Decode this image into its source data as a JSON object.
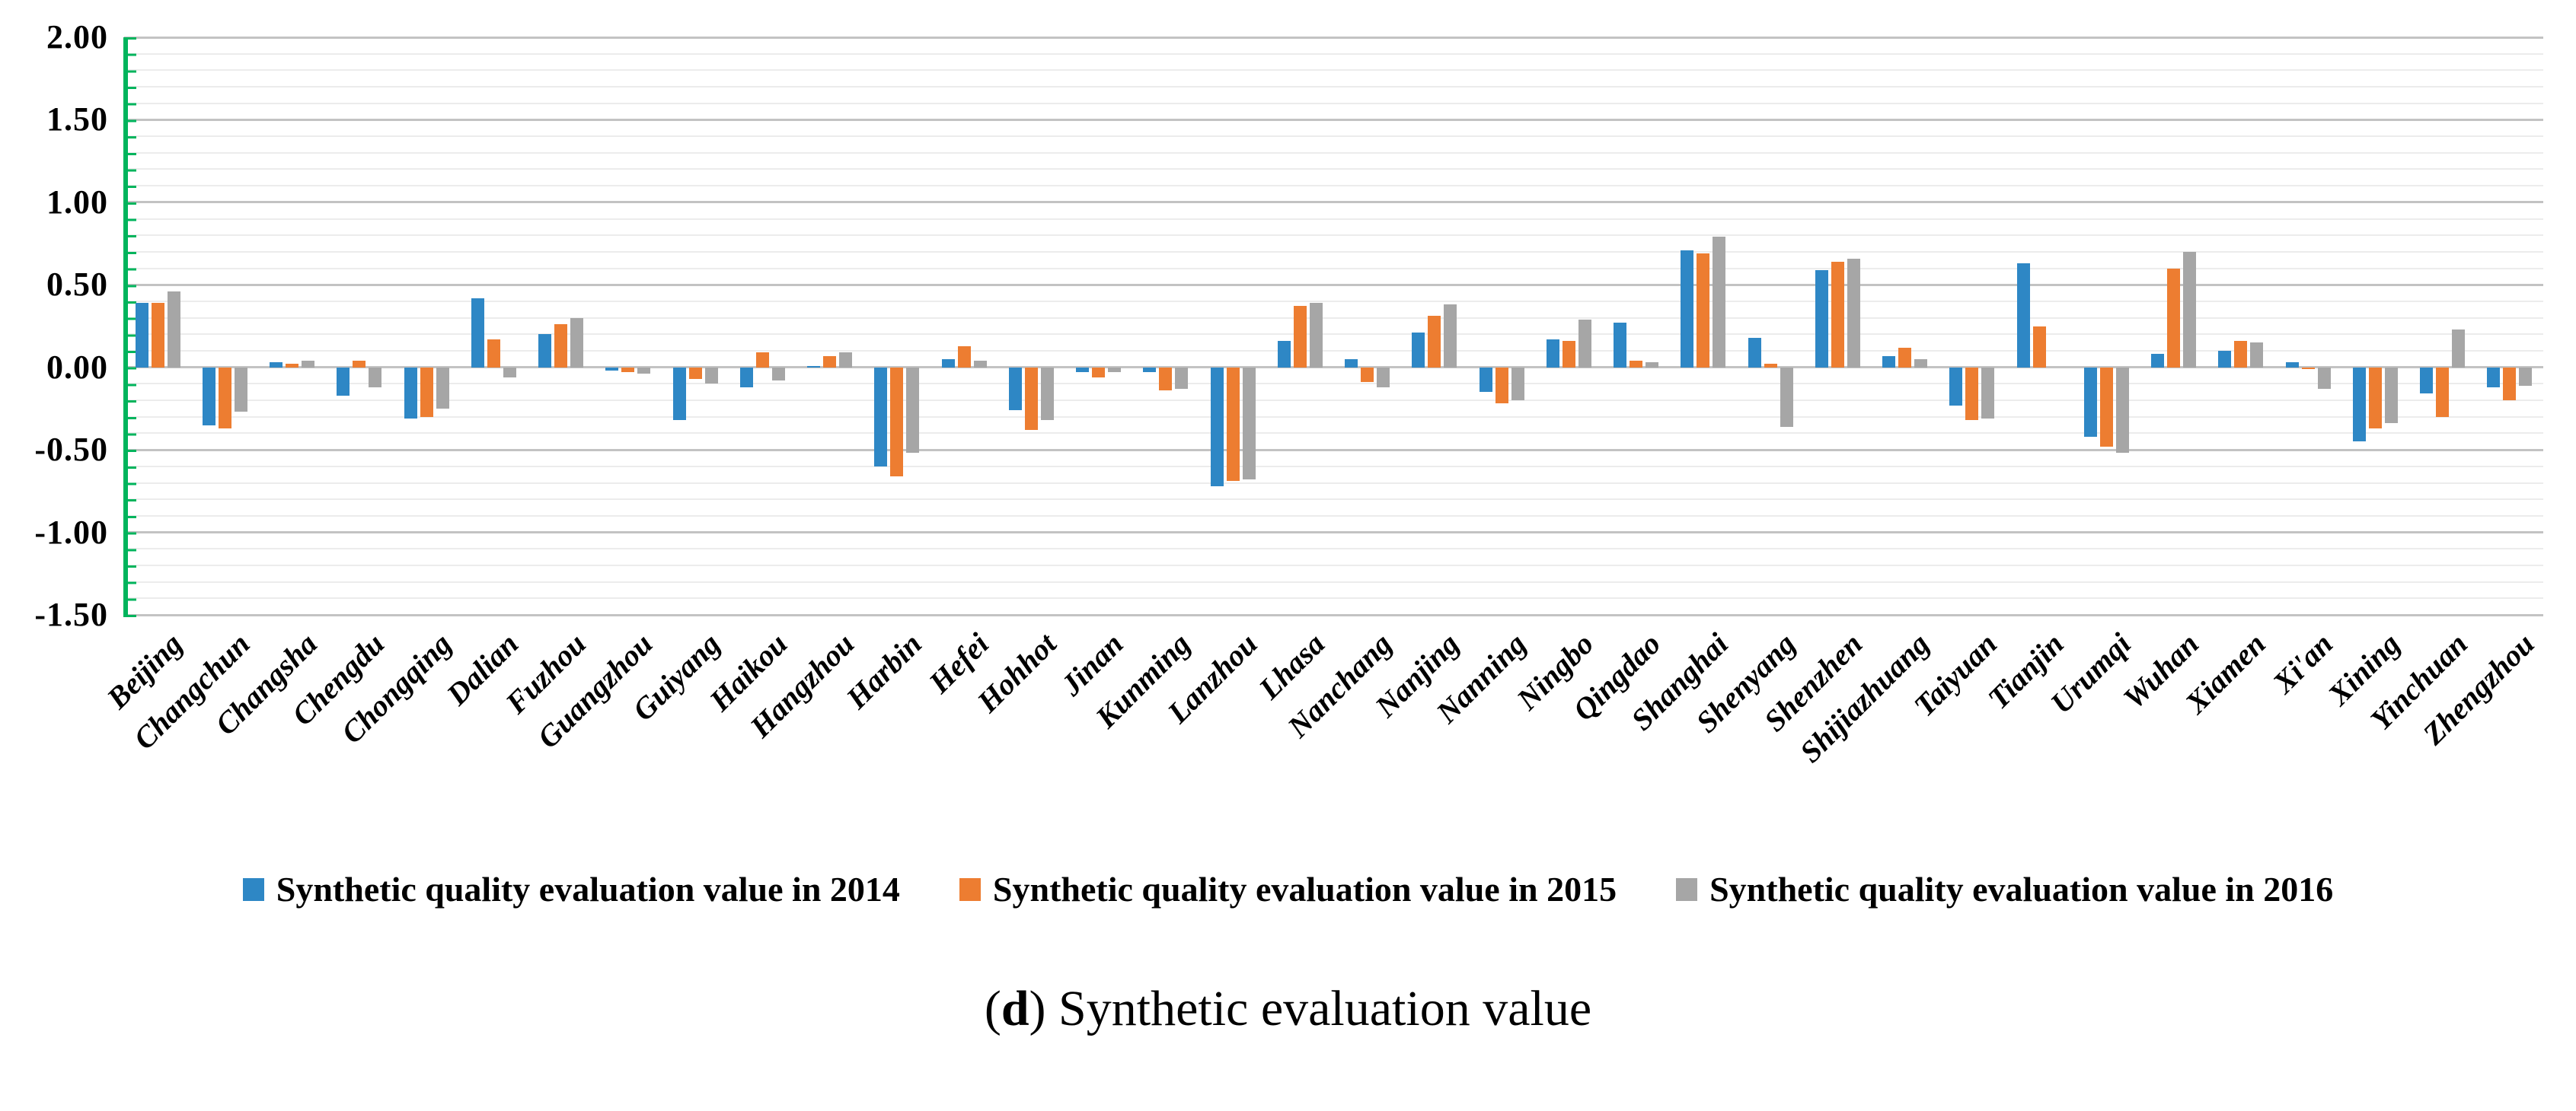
{
  "figure": {
    "caption": {
      "open": "(",
      "letter": "d",
      "rest": ") Synthetic evaluation value"
    }
  },
  "chart_data": {
    "type": "bar",
    "title": "",
    "xlabel": "",
    "ylabel": "",
    "grid": true,
    "legend_position": "bottom",
    "ylim": [
      -1.5,
      2.0
    ],
    "minor_grid_step": 0.1,
    "major_grid_step": 0.5,
    "axis_color": "#00B45C",
    "yticks": [
      {
        "value": 2.0,
        "label": "2.00"
      },
      {
        "value": 1.5,
        "label": "1.50"
      },
      {
        "value": 1.0,
        "label": "1.00"
      },
      {
        "value": 0.5,
        "label": "0.50"
      },
      {
        "value": 0.0,
        "label": "0.00"
      },
      {
        "value": -0.5,
        "label": "-0.50"
      },
      {
        "value": -1.0,
        "label": "-1.00"
      },
      {
        "value": -1.5,
        "label": "-1.50"
      }
    ],
    "categories": [
      "Beijing",
      "Changchun",
      "Changsha",
      "Chengdu",
      "Chongqing",
      "Dalian",
      "Fuzhou",
      "Guangzhou",
      "Guiyang",
      "Haikou",
      "Hangzhou",
      "Harbin",
      "Hefei",
      "Hohhot",
      "Jinan",
      "Kunming",
      "Lanzhou",
      "Lhasa",
      "Nanchang",
      "Nanjing",
      "Nanning",
      "Ningbo",
      "Qingdao",
      "Shanghai",
      "Shenyang",
      "Shenzhen",
      "Shijiazhuang",
      "Taiyuan",
      "Tianjin",
      "Urumqi",
      "Wuhan",
      "Xiamen",
      "Xi'an",
      "Xining",
      "Yinchuan",
      "Zhengzhou"
    ],
    "series": [
      {
        "name": "Synthetic quality evaluation value in 2014",
        "color": "#2E87C5",
        "values": [
          0.39,
          -0.35,
          0.03,
          -0.17,
          -0.31,
          0.42,
          0.2,
          -0.02,
          -0.32,
          -0.12,
          0.01,
          -0.6,
          0.05,
          -0.26,
          -0.03,
          -0.03,
          -0.72,
          0.16,
          0.05,
          0.21,
          -0.15,
          0.17,
          0.27,
          0.71,
          0.18,
          0.59,
          0.07,
          -0.23,
          0.63,
          -0.42,
          0.08,
          0.1,
          0.03,
          -0.45,
          -0.16,
          -0.12
        ]
      },
      {
        "name": "Synthetic quality evaluation value in 2015",
        "color": "#ED7D31",
        "values": [
          0.39,
          -0.37,
          0.02,
          0.04,
          -0.3,
          0.17,
          0.26,
          -0.03,
          -0.07,
          0.09,
          0.07,
          -0.66,
          0.13,
          -0.38,
          -0.06,
          -0.14,
          -0.69,
          0.37,
          -0.09,
          0.31,
          -0.22,
          0.16,
          0.04,
          0.69,
          0.02,
          0.64,
          0.12,
          -0.32,
          0.25,
          -0.48,
          0.6,
          0.16,
          -0.01,
          -0.37,
          -0.3,
          -0.2
        ]
      },
      {
        "name": "Synthetic quality evaluation value in 2016",
        "color": "#A6A6A6",
        "values": [
          0.46,
          -0.27,
          0.04,
          -0.12,
          -0.25,
          -0.06,
          0.3,
          -0.04,
          -0.1,
          -0.08,
          0.09,
          -0.52,
          0.04,
          -0.32,
          -0.03,
          -0.13,
          -0.68,
          0.39,
          -0.12,
          0.38,
          -0.2,
          0.29,
          0.03,
          0.79,
          -0.36,
          0.66,
          0.05,
          -0.31,
          0.0,
          -0.52,
          0.7,
          0.15,
          -0.13,
          -0.34,
          0.23,
          -0.11
        ]
      }
    ]
  }
}
